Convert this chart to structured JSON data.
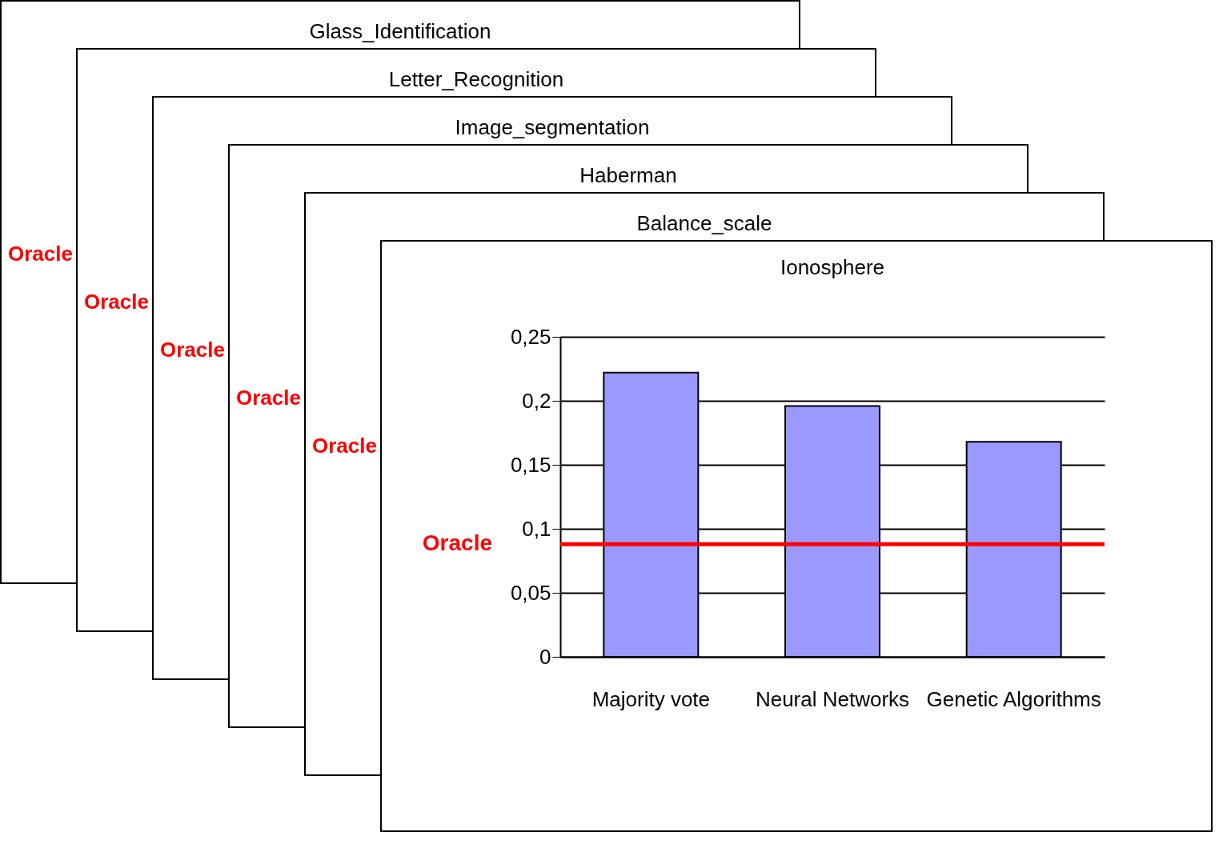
{
  "chart_data": [
    {
      "type": "other",
      "title": "Glass_Identification",
      "annotations": [
        "Oracle"
      ]
    },
    {
      "type": "other",
      "title": "Letter_Recognition",
      "annotations": [
        "Oracle"
      ]
    },
    {
      "type": "other",
      "title": "Image_segmentation",
      "annotations": [
        "Oracle"
      ]
    },
    {
      "type": "other",
      "title": "Haberman",
      "annotations": [
        "Oracle"
      ]
    },
    {
      "type": "other",
      "title": "Balance_scale",
      "annotations": [
        "Oracle"
      ]
    },
    {
      "type": "bar",
      "title": "Ionosphere",
      "categories": [
        "Majority vote",
        "Neural Networks",
        "Genetic Algorithms"
      ],
      "values": [
        0.222,
        0.196,
        0.168
      ],
      "color": "#9999ff",
      "ylim": [
        0,
        0.25
      ],
      "yticks": [
        0,
        {
          "value": 0.05,
          "label": "0,05"
        },
        {
          "value": 0.1,
          "label": "0,1"
        },
        {
          "value": 0.15,
          "label": "0,15"
        },
        {
          "value": 0.2,
          "label": "0,2"
        },
        {
          "value": 0.25,
          "label": "0,25"
        }
      ],
      "grid": "y",
      "ref_lines": [
        {
          "axis": "y",
          "value": 0.088,
          "label": "Oracle",
          "color": "#ff0000"
        }
      ]
    }
  ]
}
